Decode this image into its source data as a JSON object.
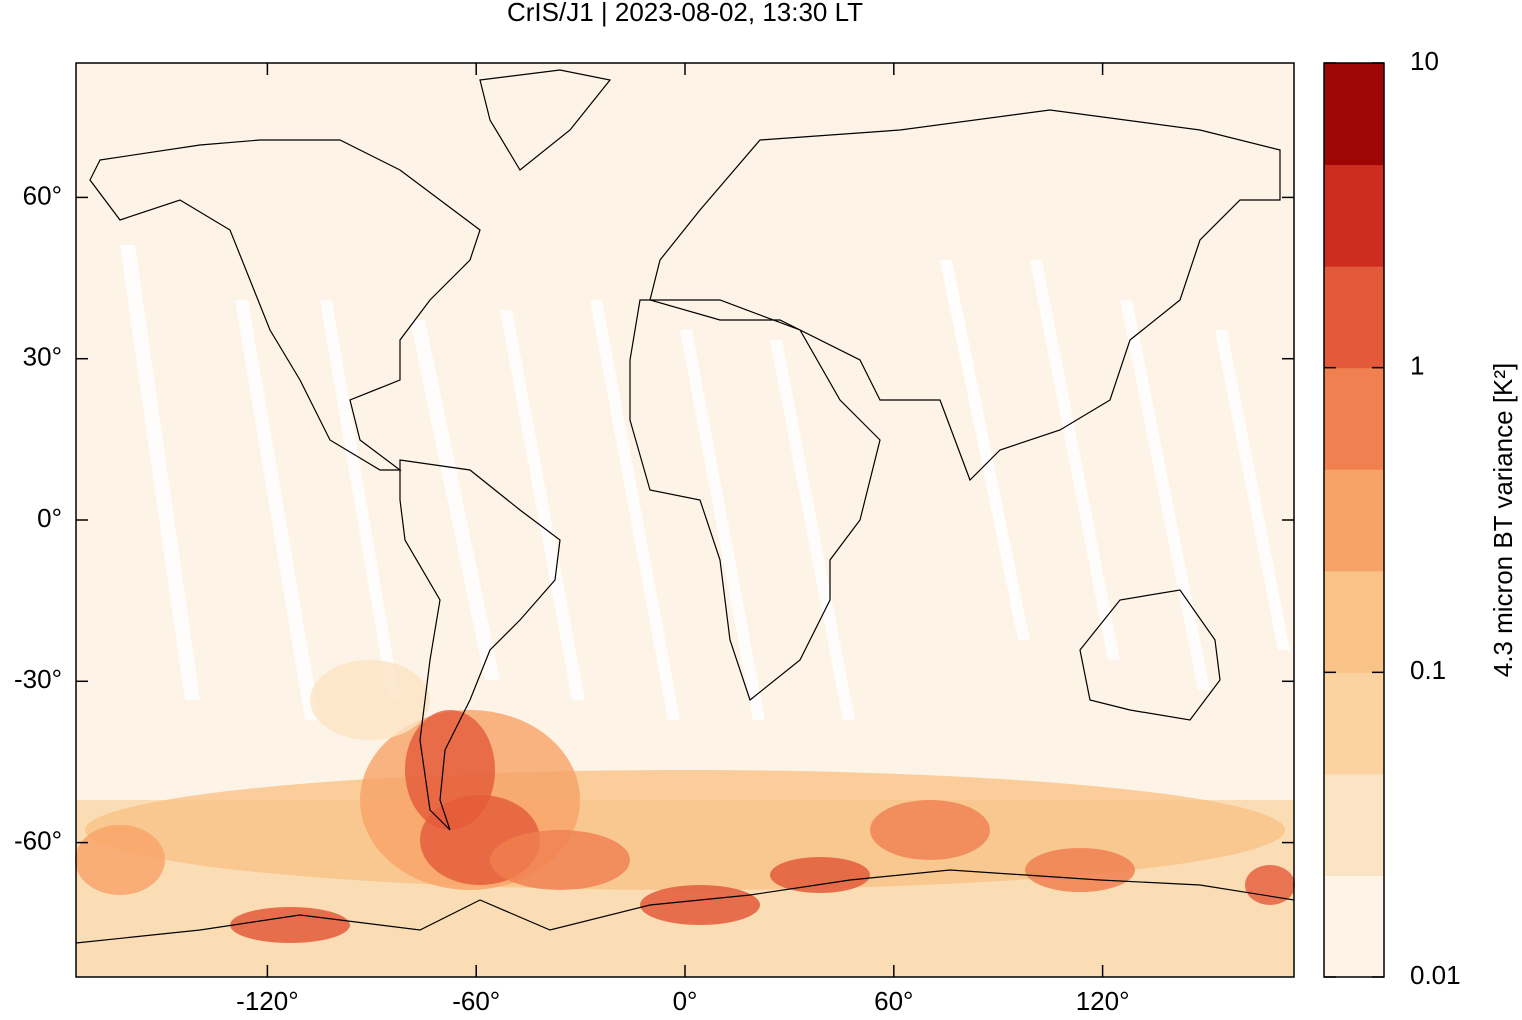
{
  "chart_data": {
    "type": "map",
    "title": "CrIS/J1 | 2023-08-02, 13:30 LT",
    "xlim": [
      -175,
      175
    ],
    "xticks": [
      {
        "value": -120,
        "label": "-120°"
      },
      {
        "value": -60,
        "label": "-60°"
      },
      {
        "value": 0,
        "label": "0°"
      },
      {
        "value": 60,
        "label": "60°"
      },
      {
        "value": 120,
        "label": "120°"
      }
    ],
    "ylim": [
      -85,
      85
    ],
    "yticks": [
      {
        "value": -60,
        "label": "-60°"
      },
      {
        "value": -30,
        "label": "-30°"
      },
      {
        "value": 0,
        "label": "0°"
      },
      {
        "value": 30,
        "label": "30°"
      },
      {
        "value": 60,
        "label": "60°"
      }
    ],
    "colorbar": {
      "label": "4.3 micron BT variance [K²]",
      "scale": "log",
      "lim": [
        0.01,
        10
      ],
      "ticks": [
        0.01,
        0.1,
        1,
        10
      ],
      "colors": [
        "#fdf3e6",
        "#fbe3c4",
        "#fad3a0",
        "#f9c388",
        "#f7a266",
        "#f08050",
        "#e35a3a",
        "#cd2c1e",
        "#9e0505"
      ]
    }
  }
}
